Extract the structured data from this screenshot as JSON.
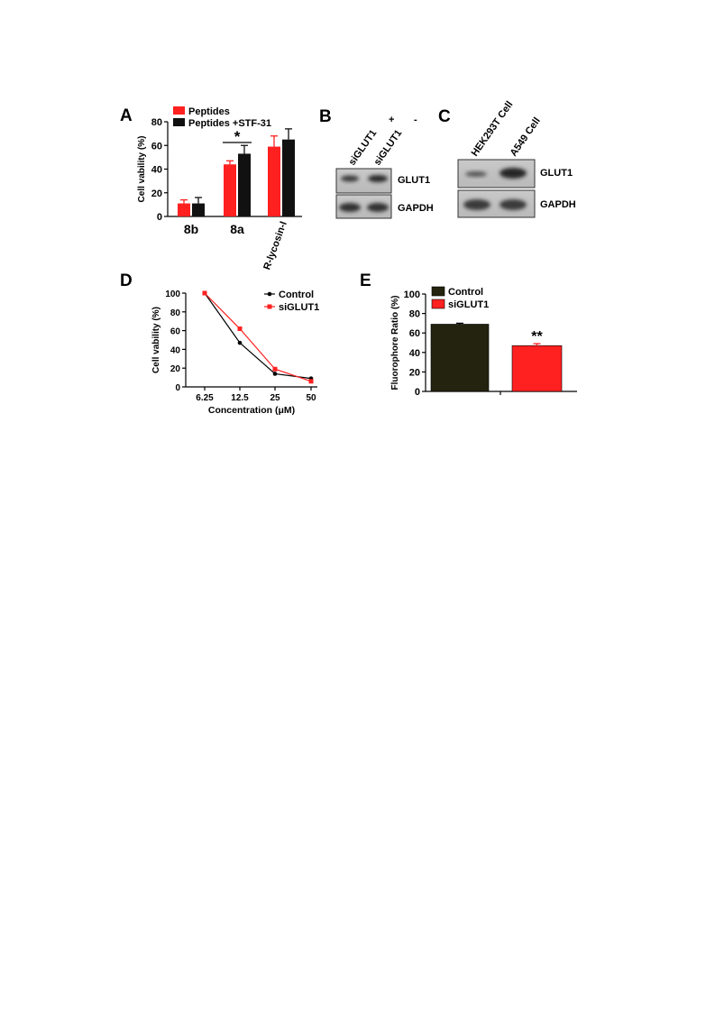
{
  "colors": {
    "red": "#ff2020",
    "black": "#111111",
    "dark_olive": "#24230f",
    "control_line": "#000000",
    "siglut1_line": "#ff2020"
  },
  "panels": {
    "A": {
      "letter": "A"
    },
    "B": {
      "letter": "B",
      "lanes": [
        "siGLUT1",
        "siGLUT1"
      ],
      "lane_signs": [
        "+",
        "-"
      ],
      "bands": [
        "GLUT1",
        "GAPDH"
      ]
    },
    "C": {
      "letter": "C",
      "lanes": [
        "HEK293T Cell",
        "A549 Cell"
      ],
      "bands": [
        "GLUT1",
        "GAPDH"
      ]
    },
    "D": {
      "letter": "D"
    },
    "E": {
      "letter": "E"
    }
  },
  "chart_data": [
    {
      "panel": "A",
      "type": "bar",
      "ylabel": "Cell vability (%)",
      "ylim": [
        0,
        80
      ],
      "yticks": [
        0,
        20,
        40,
        60,
        80
      ],
      "categories": [
        "8b",
        "8a",
        "R-lycosin-I"
      ],
      "series": [
        {
          "name": "Peptides",
          "color": "#ff2020",
          "values": [
            11,
            44,
            59
          ],
          "errors": [
            3,
            3,
            9
          ]
        },
        {
          "name": "Peptides +STF-31",
          "color": "#111111",
          "values": [
            11,
            53,
            65
          ],
          "errors": [
            5,
            7,
            9
          ]
        }
      ],
      "annotations": [
        {
          "text": "*",
          "category": "8a"
        }
      ],
      "legend": "top-left"
    },
    {
      "panel": "D",
      "type": "line",
      "xlabel": "Concentration (μM)",
      "ylabel": "Cell vability (%)",
      "ylim": [
        0,
        100
      ],
      "yticks": [
        0,
        20,
        40,
        60,
        80,
        100
      ],
      "categories": [
        "6.25",
        "12.5",
        "25",
        "50"
      ],
      "series": [
        {
          "name": "Control",
          "color": "#000000",
          "values": [
            100,
            47,
            14,
            9
          ]
        },
        {
          "name": "siGLUT1",
          "color": "#ff2020",
          "values": [
            100,
            62,
            19,
            6
          ]
        }
      ],
      "legend": "top-right"
    },
    {
      "panel": "E",
      "type": "bar",
      "ylabel": "Fluorophore Ratio (%)",
      "ylim": [
        0,
        100
      ],
      "yticks": [
        0,
        20,
        40,
        60,
        80,
        100
      ],
      "categories": [
        "Control",
        "siGLUT1"
      ],
      "values": [
        69,
        47
      ],
      "errors": [
        1,
        2
      ],
      "colors": [
        "#24230f",
        "#ff2020"
      ],
      "annotations": [
        {
          "text": "**",
          "category": "siGLUT1"
        }
      ],
      "legend": "top-left"
    }
  ]
}
